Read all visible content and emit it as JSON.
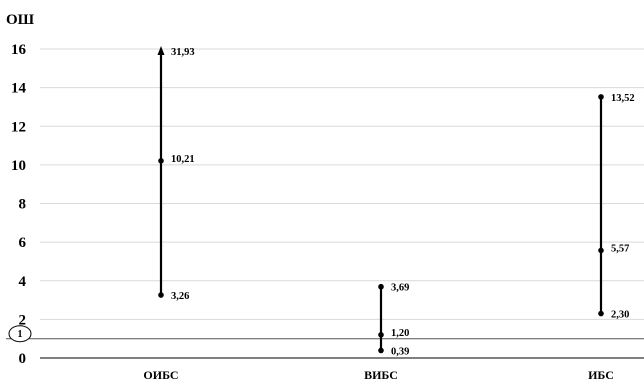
{
  "chart_data": {
    "type": "range",
    "title": "",
    "ylabel": "ОШ",
    "xlabel": "",
    "ylim": [
      0,
      16
    ],
    "yticks": [
      "0",
      "2",
      "4",
      "6",
      "8",
      "10",
      "12",
      "14",
      "16"
    ],
    "grid": true,
    "categories": [
      "ОИБС",
      "ВИБС",
      "ИБС"
    ],
    "series": [
      {
        "low": 3.26,
        "mid": 10.21,
        "high": 31.93,
        "high_clipped": true,
        "labels": {
          "low": "3,26",
          "mid": "10,21",
          "high": "31,93"
        }
      },
      {
        "low": 0.39,
        "mid": 1.2,
        "high": 3.69,
        "high_clipped": false,
        "labels": {
          "low": "0,39",
          "mid": "1,20",
          "high": "3,69"
        }
      },
      {
        "low": 2.3,
        "mid": 5.57,
        "high": 13.52,
        "high_clipped": false,
        "labels": {
          "low": "2,30",
          "mid": "5,57",
          "high": "13,52"
        }
      }
    ],
    "reference_line": {
      "value": 1,
      "label": "1"
    },
    "colors": {
      "marks": "#000000",
      "grid": "#d9d9d9"
    }
  }
}
